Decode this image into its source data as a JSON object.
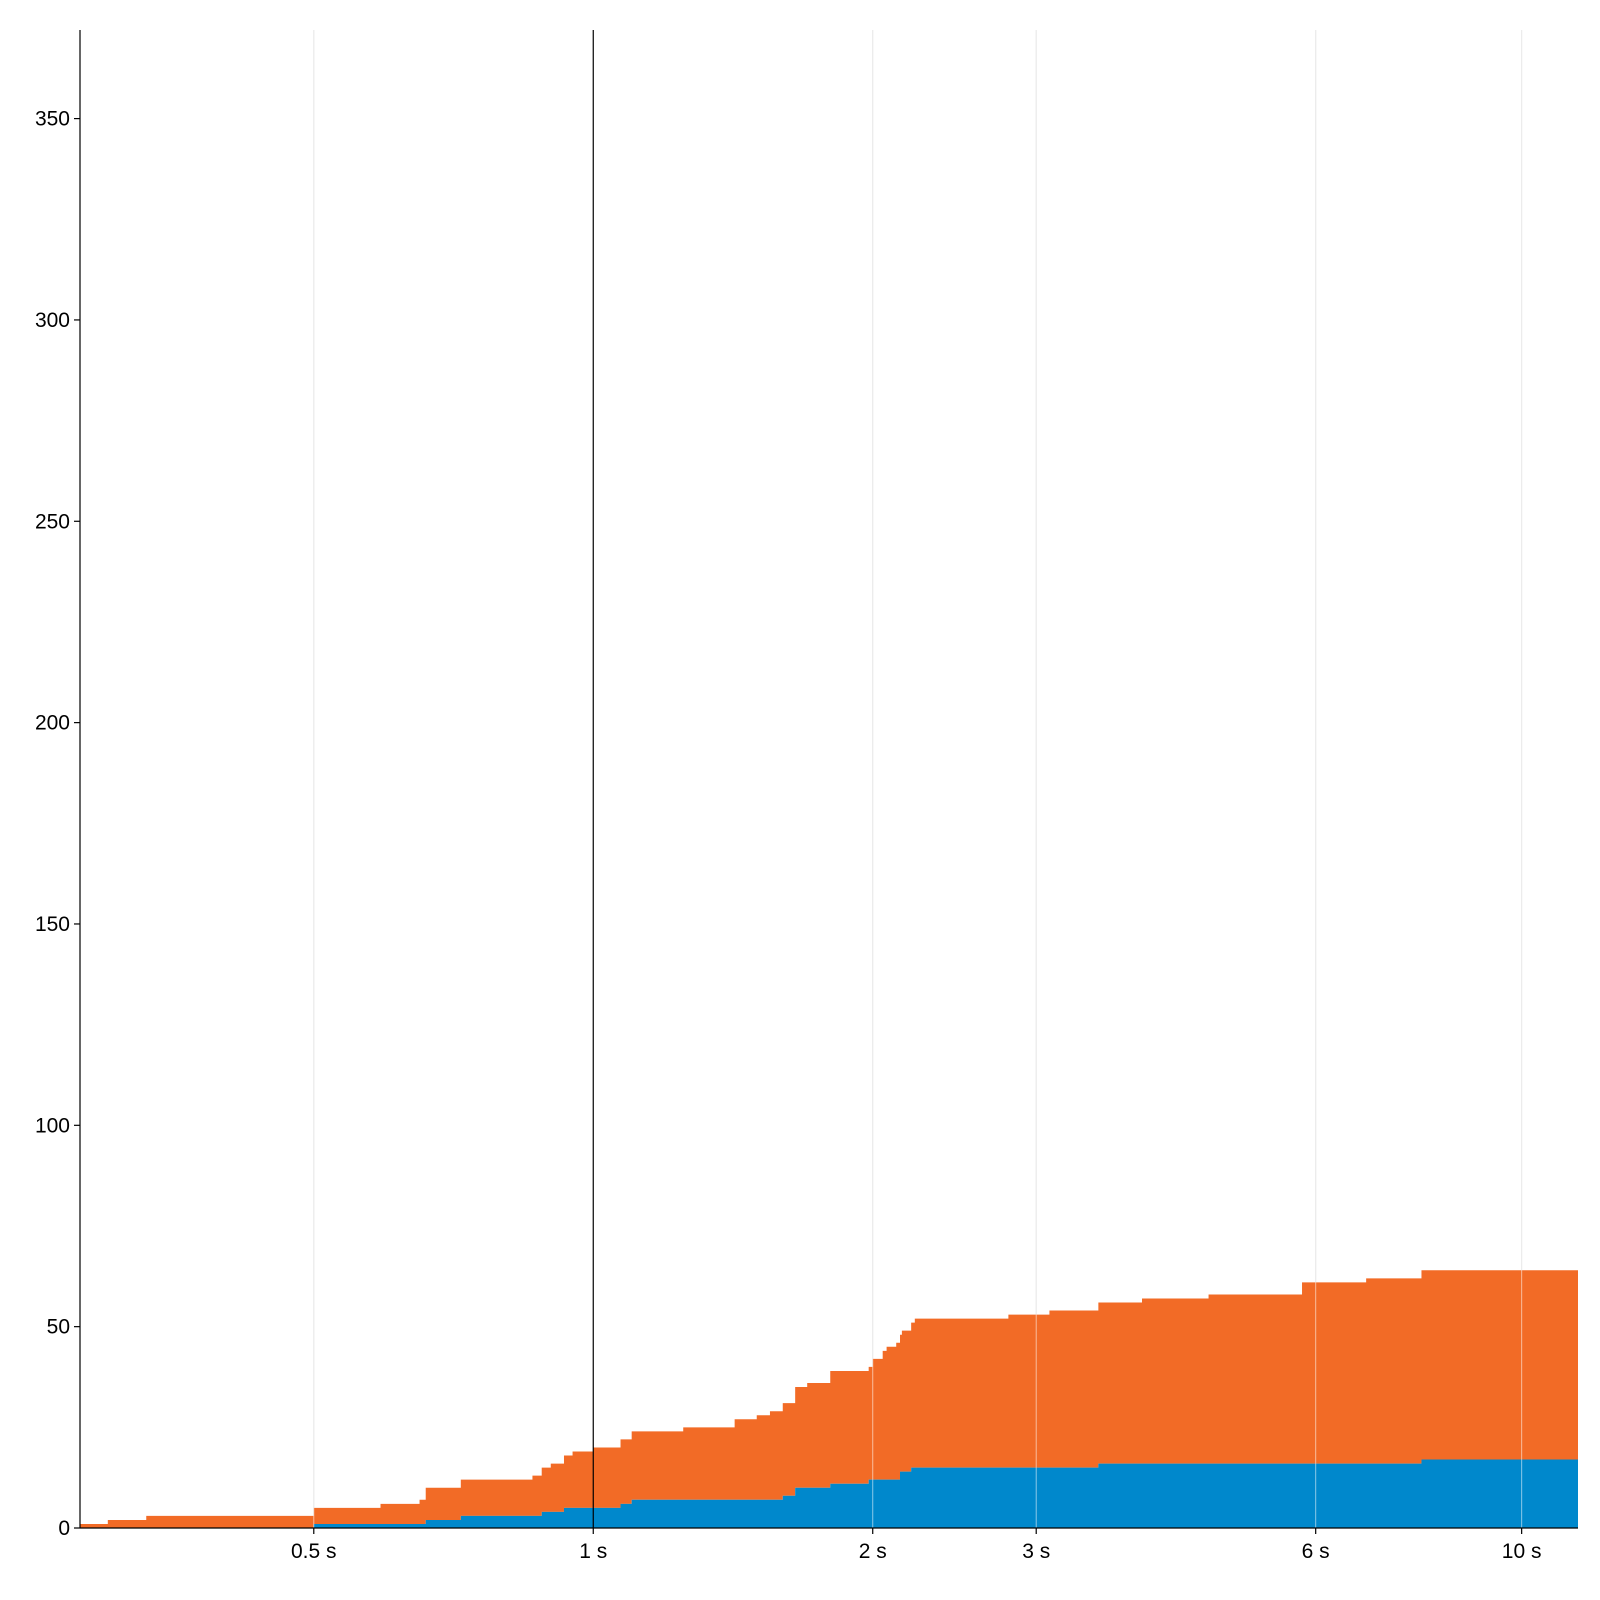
{
  "chart_data": {
    "type": "area",
    "stacked": true,
    "step": true,
    "x_scale": "log",
    "x_unit": "s",
    "xlim": [
      0.28,
      11.5
    ],
    "ylim": [
      0,
      372
    ],
    "x_ticks": [
      {
        "value": 0.5,
        "label": "0.5 s"
      },
      {
        "value": 1,
        "label": "1 s"
      },
      {
        "value": 2,
        "label": "2 s"
      },
      {
        "value": 3,
        "label": "3 s"
      },
      {
        "value": 6,
        "label": "6 s"
      },
      {
        "value": 10,
        "label": "10 s"
      }
    ],
    "y_ticks": [
      {
        "value": 0,
        "label": "0"
      },
      {
        "value": 50,
        "label": "50"
      },
      {
        "value": 100,
        "label": "100"
      },
      {
        "value": 150,
        "label": "150"
      },
      {
        "value": 200,
        "label": "200"
      },
      {
        "value": 250,
        "label": "250"
      },
      {
        "value": 300,
        "label": "300"
      },
      {
        "value": 350,
        "label": "350"
      }
    ],
    "reference_line_x": 1,
    "grid_x": true,
    "grid_y": false,
    "x_max": 11.5,
    "series": [
      {
        "color": "#0088cc",
        "points": [
          [
            0.28,
            0
          ],
          [
            0.5,
            1
          ],
          [
            0.66,
            2
          ],
          [
            0.72,
            3
          ],
          [
            0.88,
            4
          ],
          [
            0.93,
            5
          ],
          [
            1.07,
            6
          ],
          [
            1.1,
            7
          ],
          [
            1.6,
            8
          ],
          [
            1.65,
            10
          ],
          [
            1.8,
            11
          ],
          [
            1.98,
            12
          ],
          [
            2.14,
            14
          ],
          [
            2.2,
            15
          ],
          [
            3.5,
            16
          ],
          [
            7.8,
            17
          ]
        ]
      },
      {
        "color": "#f26b26",
        "points": [
          [
            0.28,
            1
          ],
          [
            0.3,
            2
          ],
          [
            0.33,
            3
          ],
          [
            0.45,
            3
          ],
          [
            0.5,
            4
          ],
          [
            0.59,
            5
          ],
          [
            0.65,
            6
          ],
          [
            0.66,
            8
          ],
          [
            0.72,
            9
          ],
          [
            0.86,
            10
          ],
          [
            0.88,
            11
          ],
          [
            0.9,
            12
          ],
          [
            0.93,
            13
          ],
          [
            0.95,
            14
          ],
          [
            1.0,
            15
          ],
          [
            1.07,
            16
          ],
          [
            1.1,
            17
          ],
          [
            1.25,
            18
          ],
          [
            1.42,
            20
          ],
          [
            1.5,
            21
          ],
          [
            1.55,
            22
          ],
          [
            1.6,
            23
          ],
          [
            1.65,
            25
          ],
          [
            1.7,
            26
          ],
          [
            1.8,
            28
          ],
          [
            2.0,
            30
          ],
          [
            2.05,
            32
          ],
          [
            2.07,
            33
          ],
          [
            2.12,
            34
          ],
          [
            2.15,
            35
          ],
          [
            2.2,
            36
          ],
          [
            2.22,
            37
          ],
          [
            2.8,
            38
          ],
          [
            3.1,
            39
          ],
          [
            3.5,
            40
          ],
          [
            3.9,
            41
          ],
          [
            4.6,
            42
          ],
          [
            5.3,
            42
          ],
          [
            5.8,
            45
          ],
          [
            6.8,
            46
          ],
          [
            7.8,
            47
          ]
        ]
      }
    ]
  }
}
